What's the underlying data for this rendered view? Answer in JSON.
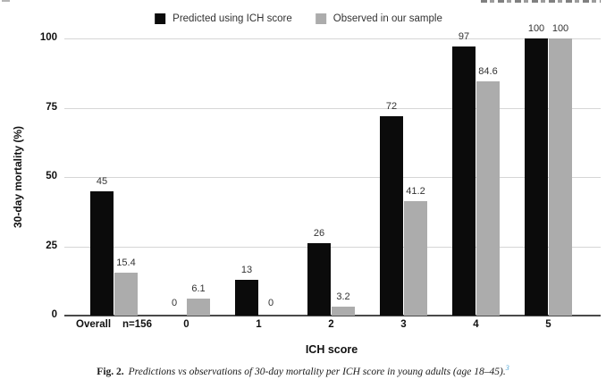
{
  "page": {
    "background": "#ffffff"
  },
  "artifacts": {
    "top_left_fragment": "clipped-gray-mark",
    "top_right_fragment": "clipped-page-header-text"
  },
  "chart_data": {
    "type": "bar",
    "title": "",
    "xlabel": "ICH score",
    "ylabel": "30-day mortality (%)",
    "ylim": [
      0,
      100
    ],
    "yticks": [
      0,
      25,
      50,
      75,
      100
    ],
    "grid": "horizontal",
    "legend_position": "top-center",
    "data_labels": true,
    "categories": [
      "Overall n=156",
      "0",
      "1",
      "2",
      "3",
      "4",
      "5"
    ],
    "category_labels": [
      [
        "Overall",
        "n=156"
      ],
      [
        "0"
      ],
      [
        "1"
      ],
      [
        "2"
      ],
      [
        "3"
      ],
      [
        "4"
      ],
      [
        "5"
      ]
    ],
    "series": [
      {
        "name": "Predicted using ICH score",
        "color": "#0b0b0b",
        "values": [
          45,
          0,
          13,
          26,
          72,
          97,
          100
        ]
      },
      {
        "name": "Observed in our sample",
        "color": "#acacac",
        "values": [
          15.4,
          6.1,
          0,
          3.2,
          41.2,
          84.6,
          100
        ]
      }
    ],
    "colors": {
      "gridline": "#d6d6d6",
      "axis": "#4a4a4a",
      "label_text": "#333333",
      "tick_text": "#111111"
    }
  },
  "caption": {
    "prefix": "Fig. 2.",
    "text": "Predictions vs observations of 30-day mortality per ICH score in young adults (age 18–45).",
    "superscript": "3",
    "superscript_color": "#4da4d4"
  }
}
